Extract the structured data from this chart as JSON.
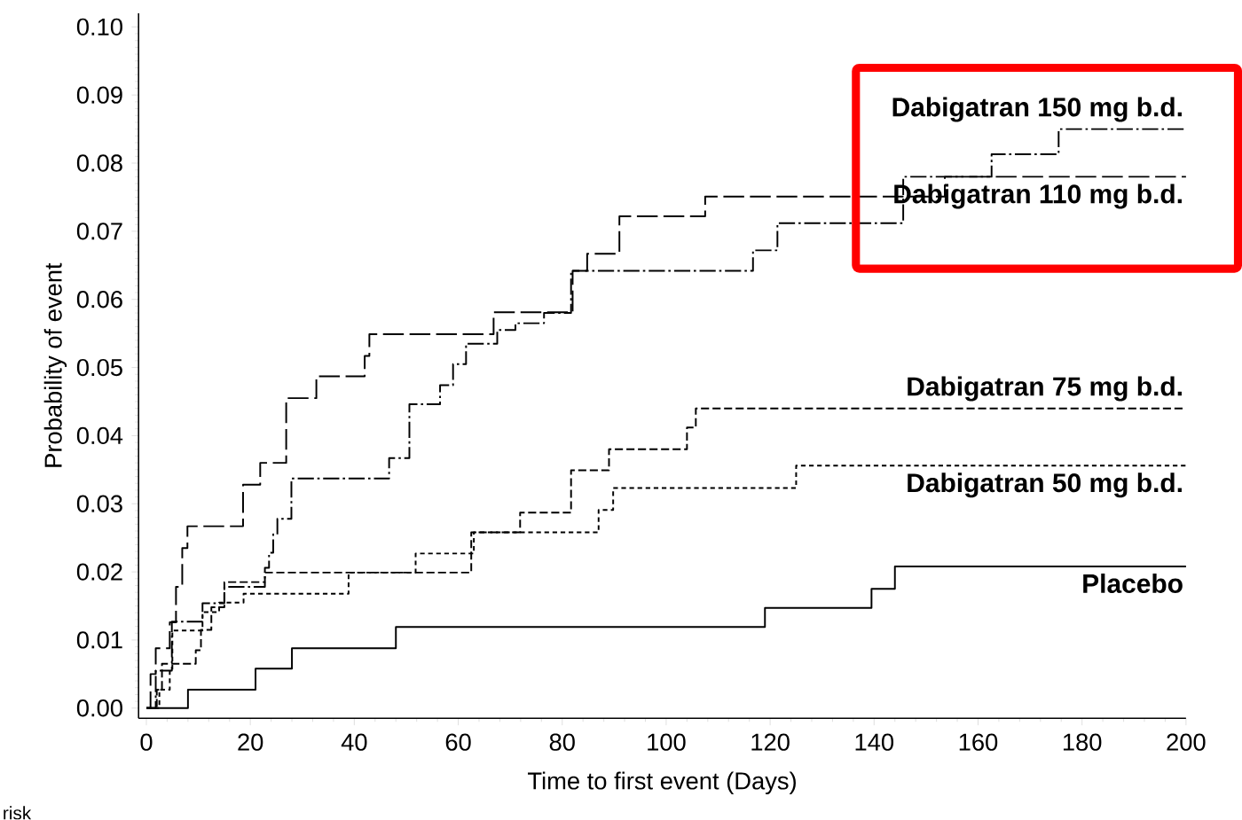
{
  "chart_data": {
    "type": "step",
    "xlabel": "Time to first event (Days)",
    "ylabel": "Probability of event",
    "xlim": [
      -1.5,
      200
    ],
    "ylim": [
      -0.0015,
      0.102
    ],
    "xticks": [
      0,
      20,
      40,
      60,
      80,
      100,
      120,
      140,
      160,
      180,
      200
    ],
    "yticks": [
      {
        "value": 0,
        "label": "0.00"
      },
      {
        "value": 0.01,
        "label": "0.01"
      },
      {
        "value": 0.02,
        "label": "0.02"
      },
      {
        "value": 0.03,
        "label": "0.03"
      },
      {
        "value": 0.04,
        "label": "0.04"
      },
      {
        "value": 0.05,
        "label": "0.05"
      },
      {
        "value": 0.06,
        "label": "0.06"
      },
      {
        "value": 0.07,
        "label": "0.07"
      },
      {
        "value": 0.08,
        "label": "0.08"
      },
      {
        "value": 0.09,
        "label": "0.09"
      },
      {
        "value": 0.1,
        "label": "0.10"
      }
    ],
    "grid": false,
    "legend": false,
    "marker": "none",
    "annotations": [
      "risk"
    ],
    "series": [
      {
        "name": "Dabigatran 150 mg b.d.",
        "color": "#000000",
        "line_style": "dashed",
        "x": [
          0,
          1.8,
          4.9,
          10.8,
          15,
          22.8,
          23.6,
          24.4,
          25.2,
          27.9,
          46.7,
          50.6,
          56.5,
          59,
          61.5,
          67.5,
          71,
          76.5,
          81.7,
          116.7,
          121.4,
          145.6,
          162.6,
          175.5,
          200
        ],
        "values": [
          0,
          0.0055,
          0.0127,
          0.0154,
          0.0178,
          0.0206,
          0.0228,
          0.0255,
          0.0278,
          0.0337,
          0.0367,
          0.0446,
          0.0474,
          0.0505,
          0.0535,
          0.0555,
          0.0565,
          0.058,
          0.0642,
          0.0672,
          0.0712,
          0.078,
          0.0813,
          0.085,
          0.085
        ]
      },
      {
        "name": "Dabigatran 110 mg b.d.",
        "color": "#000000",
        "line_style": "dashed",
        "x": [
          0,
          0.8,
          1.8,
          4.5,
          5.7,
          6.9,
          7.9,
          18.6,
          21.9,
          26.9,
          32.7,
          42,
          42.9,
          66.8,
          82,
          84.8,
          91,
          107.5,
          153.6,
          200
        ],
        "values": [
          0,
          0.005,
          0.0088,
          0.0126,
          0.0178,
          0.0235,
          0.0267,
          0.0328,
          0.036,
          0.0455,
          0.0487,
          0.0517,
          0.0549,
          0.0581,
          0.0642,
          0.0667,
          0.0722,
          0.0751,
          0.078,
          0.078
        ]
      },
      {
        "name": "Dabigatran 75 mg b.d.",
        "color": "#000000",
        "line_style": "dashed",
        "x": [
          0,
          2,
          3,
          9.5,
          10.5,
          12.5,
          15,
          22.8,
          62.5,
          71.9,
          81.7,
          89,
          104,
          105.7,
          200
        ],
        "values": [
          0,
          0.0027,
          0.0065,
          0.0085,
          0.0115,
          0.0148,
          0.0185,
          0.0199,
          0.0258,
          0.0287,
          0.0349,
          0.038,
          0.0412,
          0.044,
          0.044
        ]
      },
      {
        "name": "Dabigatran 50 mg b.d.",
        "color": "#000000",
        "line_style": "dashed",
        "x": [
          0,
          2.5,
          4.5,
          5,
          10.8,
          14,
          18.7,
          38.9,
          51.8,
          63,
          87,
          89.8,
          125,
          200
        ],
        "values": [
          0,
          0.0027,
          0.0054,
          0.0114,
          0.0141,
          0.0155,
          0.0168,
          0.0199,
          0.0227,
          0.0258,
          0.0291,
          0.0323,
          0.0356,
          0.0356
        ]
      },
      {
        "name": "Placebo",
        "color": "#000000",
        "line_style": "solid",
        "x": [
          0,
          8,
          21,
          28,
          48,
          119,
          139.5,
          144,
          200
        ],
        "values": [
          0,
          0.0027,
          0.0058,
          0.0088,
          0.0119,
          0.0147,
          0.0175,
          0.0208,
          0.0208
        ]
      }
    ]
  }
}
